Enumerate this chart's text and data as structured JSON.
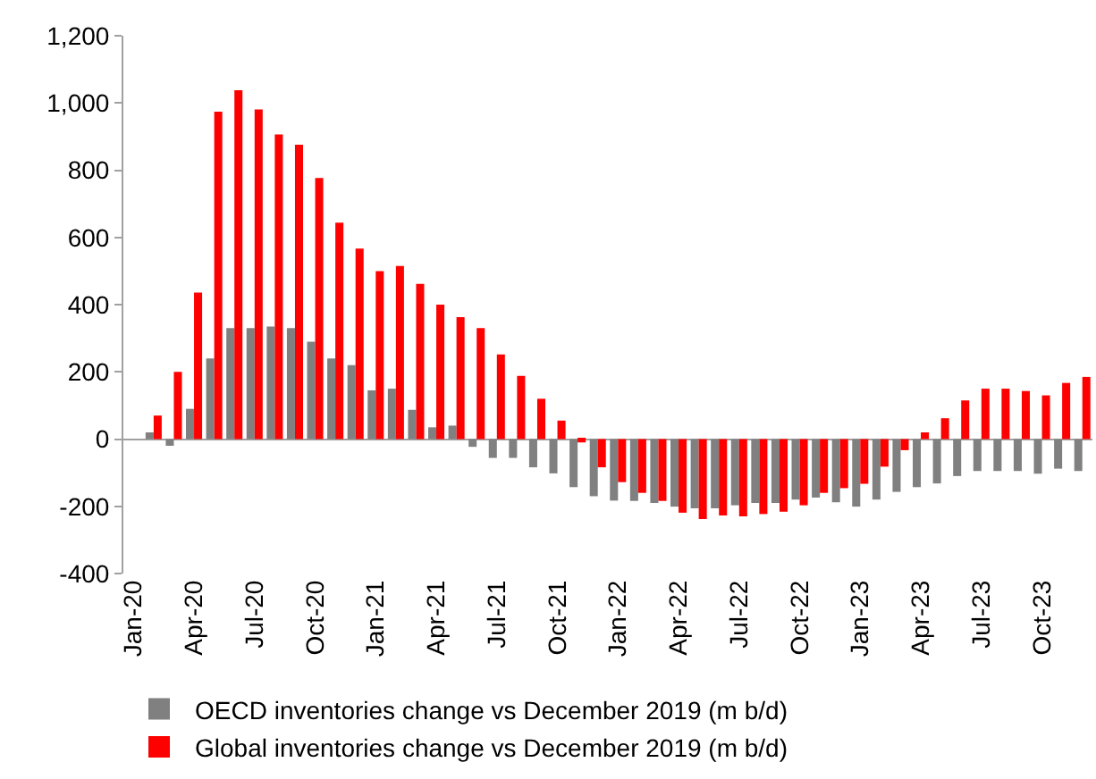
{
  "chart_data": {
    "type": "bar",
    "categories": [
      "Jan-20",
      null,
      null,
      "Apr-20",
      null,
      null,
      "Jul-20",
      null,
      null,
      "Oct-20",
      null,
      null,
      "Jan-21",
      null,
      null,
      "Apr-21",
      null,
      null,
      "Jul-21",
      null,
      null,
      "Oct-21",
      null,
      null,
      "Jan-22",
      null,
      null,
      "Apr-22",
      null,
      null,
      "Jul-22",
      null,
      null,
      "Oct-22",
      null,
      null,
      "Jan-23",
      null,
      null,
      "Apr-23",
      null,
      null,
      "Jul-23",
      null,
      null,
      "Oct-23",
      null,
      null
    ],
    "series": [
      {
        "name": "OECD inventories change vs December 2019 (m b/d)",
        "color": "#808080",
        "values": [
          null,
          20,
          -20,
          90,
          240,
          330,
          330,
          335,
          330,
          290,
          240,
          220,
          145,
          150,
          87,
          35,
          40,
          -23,
          -56,
          -56,
          -84,
          -102,
          -143,
          -170,
          -183,
          -184,
          -190,
          -201,
          -206,
          -206,
          -197,
          -190,
          -190,
          -180,
          -174,
          -188,
          -201,
          -180,
          -157,
          -143,
          -132,
          -110,
          -95,
          -95,
          -95,
          -103,
          -88,
          -95
        ]
      },
      {
        "name": "Global inventories change vs December 2019 (m b/d)",
        "color": "#ff0000",
        "values": [
          null,
          70,
          200,
          436,
          974,
          1038,
          981,
          906,
          876,
          777,
          644,
          567,
          500,
          515,
          462,
          400,
          363,
          330,
          252,
          188,
          120,
          55,
          -10,
          -84,
          -128,
          -160,
          -184,
          -219,
          -238,
          -227,
          -230,
          -223,
          -216,
          -197,
          -160,
          -146,
          -133,
          -82,
          -33,
          20,
          62,
          115,
          150,
          150,
          143,
          130,
          167,
          185
        ]
      }
    ],
    "ylim": [
      -400,
      1200
    ],
    "yticks": [
      {
        "value": -400,
        "label": "-400"
      },
      {
        "value": -200,
        "label": "-200"
      },
      0,
      200,
      400,
      600,
      800,
      {
        "value": 1000,
        "label": "1,000"
      },
      {
        "value": 1200,
        "label": "1,200"
      }
    ],
    "legend": "bottom"
  }
}
